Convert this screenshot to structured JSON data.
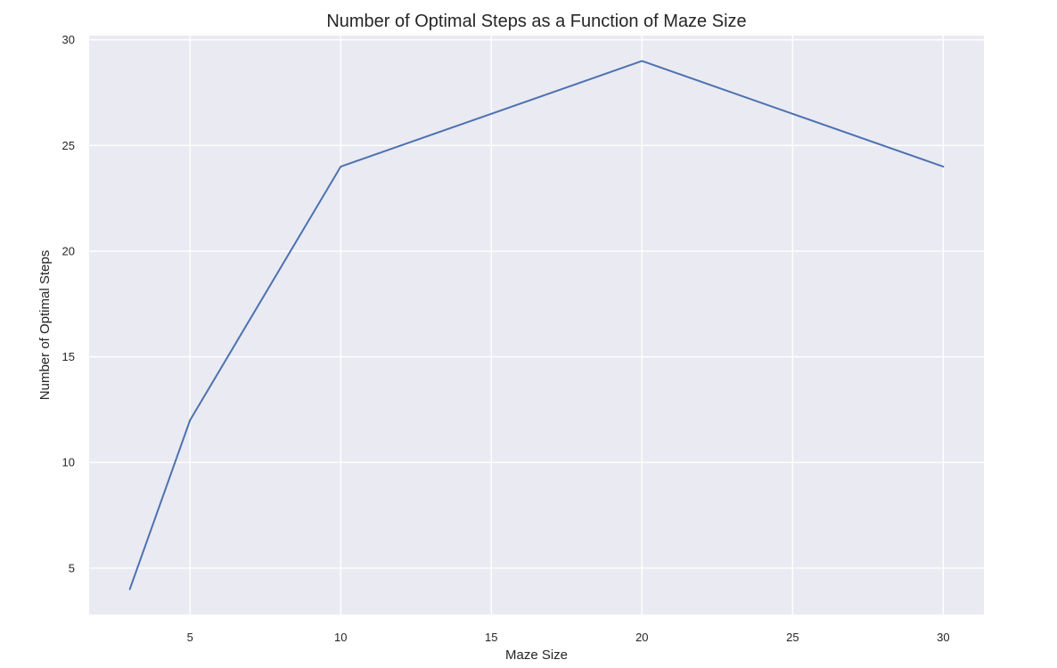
{
  "chart_data": {
    "type": "line",
    "title": "Number of Optimal Steps as a Function of Maze Size",
    "xlabel": "Maze Size",
    "ylabel": "Number of Optimal Steps",
    "x": [
      3,
      5,
      10,
      20,
      30
    ],
    "series": [
      {
        "values": [
          4,
          12,
          24,
          29,
          24
        ]
      }
    ],
    "xticks": [
      5,
      10,
      15,
      20,
      25,
      30
    ],
    "yticks": [
      5,
      10,
      15,
      20,
      25,
      30
    ],
    "xlim": [
      1.65,
      31.35
    ],
    "ylim": [
      2.8,
      30.2
    ],
    "grid": true,
    "legend": "none",
    "colors": {
      "plot_background": "#eaeaf2",
      "grid": "#ffffff",
      "line": "#4c72b0"
    }
  }
}
